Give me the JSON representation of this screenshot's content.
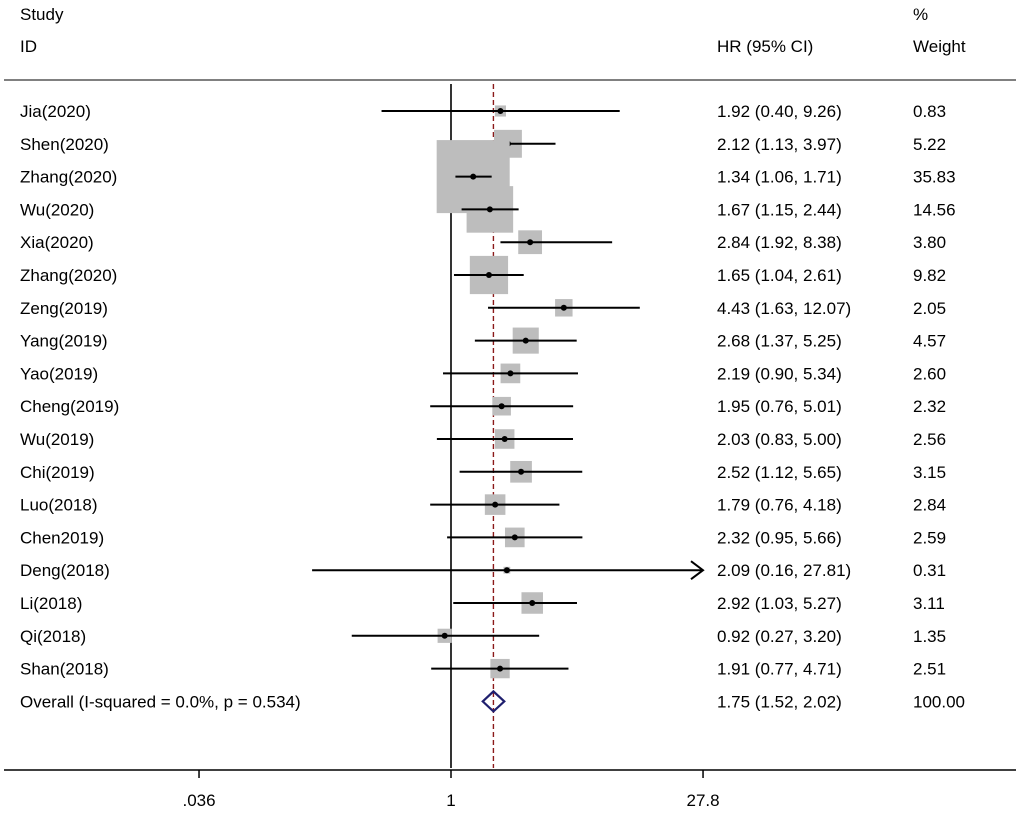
{
  "header": {
    "study_line1": "Study",
    "study_line2": "ID",
    "hr_label": "HR (95% CI)",
    "weight_line1": "%",
    "weight_line2": "Weight"
  },
  "chart_data": {
    "type": "forest",
    "x_scale": "log",
    "x_ticks": [
      ".036",
      "1",
      "27.8"
    ],
    "x_tick_values": [
      0.036,
      1,
      27.8
    ],
    "reference_line": 1,
    "pooled_line": 1.75,
    "studies": [
      {
        "name": "Jia(2020)",
        "hr": 1.92,
        "lo": 0.4,
        "hi": 9.26,
        "ci_text": "1.92 (0.40, 9.26)",
        "weight": 0.83,
        "weight_text": "0.83"
      },
      {
        "name": "Shen(2020)",
        "hr": 2.12,
        "lo": 1.13,
        "hi": 3.97,
        "ci_text": "2.12 (1.13, 3.97)",
        "weight": 5.22,
        "weight_text": "5.22"
      },
      {
        "name": "Zhang(2020)",
        "hr": 1.34,
        "lo": 1.06,
        "hi": 1.71,
        "ci_text": "1.34 (1.06, 1.71)",
        "weight": 35.83,
        "weight_text": "35.83"
      },
      {
        "name": "Wu(2020)",
        "hr": 1.67,
        "lo": 1.15,
        "hi": 2.44,
        "ci_text": "1.67 (1.15, 2.44)",
        "weight": 14.56,
        "weight_text": "14.56"
      },
      {
        "name": "Xia(2020)",
        "hr": 2.84,
        "lo": 1.92,
        "hi": 8.38,
        "ci_text": "2.84 (1.92, 8.38)",
        "weight": 3.8,
        "weight_text": "3.80"
      },
      {
        "name": "Zhang(2020)",
        "hr": 1.65,
        "lo": 1.04,
        "hi": 2.61,
        "ci_text": "1.65 (1.04, 2.61)",
        "weight": 9.82,
        "weight_text": "9.82"
      },
      {
        "name": "Zeng(2019)",
        "hr": 4.43,
        "lo": 1.63,
        "hi": 12.07,
        "ci_text": "4.43 (1.63, 12.07)",
        "weight": 2.05,
        "weight_text": "2.05"
      },
      {
        "name": "Yang(2019)",
        "hr": 2.68,
        "lo": 1.37,
        "hi": 5.25,
        "ci_text": "2.68 (1.37, 5.25)",
        "weight": 4.57,
        "weight_text": "4.57"
      },
      {
        "name": "Yao(2019)",
        "hr": 2.19,
        "lo": 0.9,
        "hi": 5.34,
        "ci_text": "2.19 (0.90, 5.34)",
        "weight": 2.6,
        "weight_text": "2.60"
      },
      {
        "name": "Cheng(2019)",
        "hr": 1.95,
        "lo": 0.76,
        "hi": 5.01,
        "ci_text": "1.95 (0.76, 5.01)",
        "weight": 2.32,
        "weight_text": "2.32"
      },
      {
        "name": "Wu(2019)",
        "hr": 2.03,
        "lo": 0.83,
        "hi": 5.0,
        "ci_text": "2.03 (0.83, 5.00)",
        "weight": 2.56,
        "weight_text": "2.56"
      },
      {
        "name": "Chi(2019)",
        "hr": 2.52,
        "lo": 1.12,
        "hi": 5.65,
        "ci_text": "2.52 (1.12, 5.65)",
        "weight": 3.15,
        "weight_text": "3.15"
      },
      {
        "name": "Luo(2018)",
        "hr": 1.79,
        "lo": 0.76,
        "hi": 4.18,
        "ci_text": "1.79 (0.76, 4.18)",
        "weight": 2.84,
        "weight_text": "2.84"
      },
      {
        "name": "Chen2019)",
        "hr": 2.32,
        "lo": 0.95,
        "hi": 5.66,
        "ci_text": "2.32 (0.95, 5.66)",
        "weight": 2.59,
        "weight_text": "2.59"
      },
      {
        "name": "Deng(2018)",
        "hr": 2.09,
        "lo": 0.16,
        "hi": 27.81,
        "ci_text": "2.09 (0.16, 27.81)",
        "weight": 0.31,
        "weight_text": "0.31",
        "truncated_right": true
      },
      {
        "name": "Li(2018)",
        "hr": 2.92,
        "lo": 1.03,
        "hi": 5.27,
        "ci_text": "2.92 (1.03, 5.27)",
        "weight": 3.11,
        "weight_text": "3.11"
      },
      {
        "name": "Qi(2018)",
        "hr": 0.92,
        "lo": 0.27,
        "hi": 3.2,
        "ci_text": "0.92 (0.27, 3.20)",
        "weight": 1.35,
        "weight_text": "1.35"
      },
      {
        "name": "Shan(2018)",
        "hr": 1.91,
        "lo": 0.77,
        "hi": 4.71,
        "ci_text": "1.91 (0.77, 4.71)",
        "weight": 2.51,
        "weight_text": "2.51"
      }
    ],
    "overall": {
      "label": "Overall  (I-squared = 0.0%, p = 0.534)",
      "hr": 1.75,
      "lo": 1.52,
      "hi": 2.02,
      "ci_text": "1.75 (1.52, 2.02)",
      "weight_text": "100.00"
    },
    "colors": {
      "box": "#bdbdbd",
      "ci_line": "#000000",
      "pooled_line": "#8b1a1a",
      "diamond": "#1f1f6e"
    }
  }
}
